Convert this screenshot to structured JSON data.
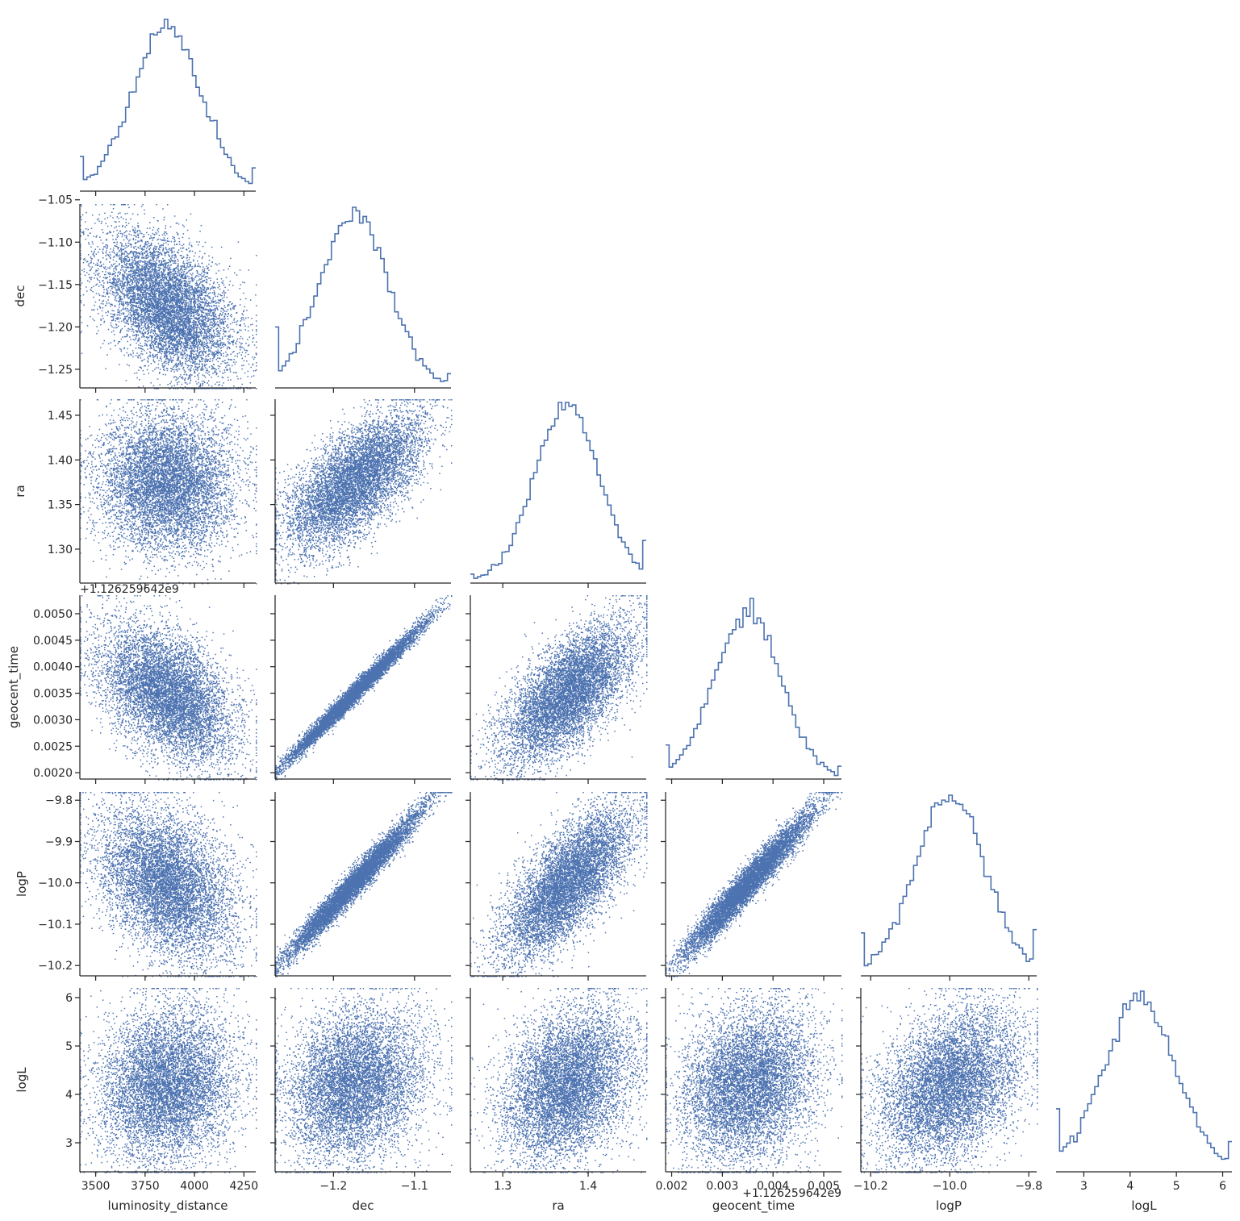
{
  "chart_data": {
    "type": "corner",
    "title": "",
    "colors": {
      "series": "#4c72b0",
      "axis": "#262626"
    },
    "grid": false,
    "parameters": [
      {
        "name": "luminosity_distance",
        "label": "luminosity_distance",
        "range": [
          3420,
          4310
        ],
        "ticks": [
          3500,
          3750,
          4000,
          4250
        ],
        "tick_labels": [
          "3500",
          "3750",
          "4000",
          "4250"
        ],
        "mean": 3860,
        "sd": 170
      },
      {
        "name": "dec",
        "label": "dec",
        "range": [
          -1.272,
          -1.055
        ],
        "ticks": [
          -1.25,
          -1.2,
          -1.15,
          -1.1,
          -1.05
        ],
        "tick_labels": [
          "−1.25",
          "−1.20",
          "−1.15",
          "−1.10",
          "−1.05"
        ],
        "x_ticks": [
          -1.2,
          -1.1
        ],
        "x_tick_labels": [
          "−1.2",
          "−1.1"
        ],
        "mean": -1.175,
        "sd": 0.042
      },
      {
        "name": "ra",
        "label": "ra",
        "range": [
          1.262,
          1.468
        ],
        "ticks": [
          1.3,
          1.35,
          1.4,
          1.45
        ],
        "tick_labels": [
          "1.30",
          "1.35",
          "1.40",
          "1.45"
        ],
        "x_ticks": [
          1.3,
          1.4
        ],
        "x_tick_labels": [
          "1.3",
          "1.4"
        ],
        "mean": 1.375,
        "sd": 0.038
      },
      {
        "name": "geocent_time",
        "label": "geocent_time",
        "range": [
          0.00188,
          0.00535
        ],
        "ticks": [
          0.002,
          0.0025,
          0.003,
          0.0035,
          0.004,
          0.0045,
          0.005
        ],
        "tick_labels": [
          "0.0020",
          "0.0025",
          "0.0030",
          "0.0035",
          "0.0040",
          "0.0045",
          "0.0050"
        ],
        "x_ticks": [
          0.002,
          0.003,
          0.004,
          0.005
        ],
        "x_tick_labels": [
          "0.002",
          "0.003",
          "0.004",
          "0.005"
        ],
        "offset": "+1.126259642e9",
        "mean": 0.0035,
        "sd": 0.00065
      },
      {
        "name": "logP",
        "label": "logP",
        "range": [
          -10.225,
          -9.78
        ],
        "ticks": [
          -10.2,
          -10.1,
          -10.0,
          -9.9,
          -9.8
        ],
        "tick_labels": [
          "−10.2",
          "−10.1",
          "−10.0",
          "−9.9",
          "−9.8"
        ],
        "x_ticks": [
          -10.2,
          -10.0,
          -9.8
        ],
        "x_tick_labels": [
          "−10.2",
          "−10.0",
          "−9.8"
        ],
        "mean": -10.0,
        "sd": 0.09
      },
      {
        "name": "logL",
        "label": "logL",
        "range": [
          2.4,
          6.2
        ],
        "ticks": [
          3,
          4,
          5,
          6
        ],
        "tick_labels": [
          "3",
          "4",
          "5",
          "6"
        ],
        "mean": 4.2,
        "sd": 0.78
      }
    ],
    "correlations": [
      {
        "pair": [
          "dec",
          "luminosity_distance"
        ],
        "rho": -0.45
      },
      {
        "pair": [
          "ra",
          "luminosity_distance"
        ],
        "rho": -0.05
      },
      {
        "pair": [
          "ra",
          "dec"
        ],
        "rho": 0.65
      },
      {
        "pair": [
          "geocent_time",
          "luminosity_distance"
        ],
        "rho": -0.45
      },
      {
        "pair": [
          "geocent_time",
          "dec"
        ],
        "rho": 0.99
      },
      {
        "pair": [
          "geocent_time",
          "ra"
        ],
        "rho": 0.65
      },
      {
        "pair": [
          "logP",
          "luminosity_distance"
        ],
        "rho": -0.35
      },
      {
        "pair": [
          "logP",
          "dec"
        ],
        "rho": 0.98
      },
      {
        "pair": [
          "logP",
          "ra"
        ],
        "rho": 0.72
      },
      {
        "pair": [
          "logP",
          "geocent_time"
        ],
        "rho": 0.97
      },
      {
        "pair": [
          "logL",
          "luminosity_distance"
        ],
        "rho": 0.1
      },
      {
        "pair": [
          "logL",
          "dec"
        ],
        "rho": 0.2
      },
      {
        "pair": [
          "logL",
          "ra"
        ],
        "rho": 0.3
      },
      {
        "pair": [
          "logL",
          "geocent_time"
        ],
        "rho": 0.2
      },
      {
        "pair": [
          "logL",
          "logP"
        ],
        "rho": 0.35
      }
    ],
    "samples_per_panel": 7000
  }
}
